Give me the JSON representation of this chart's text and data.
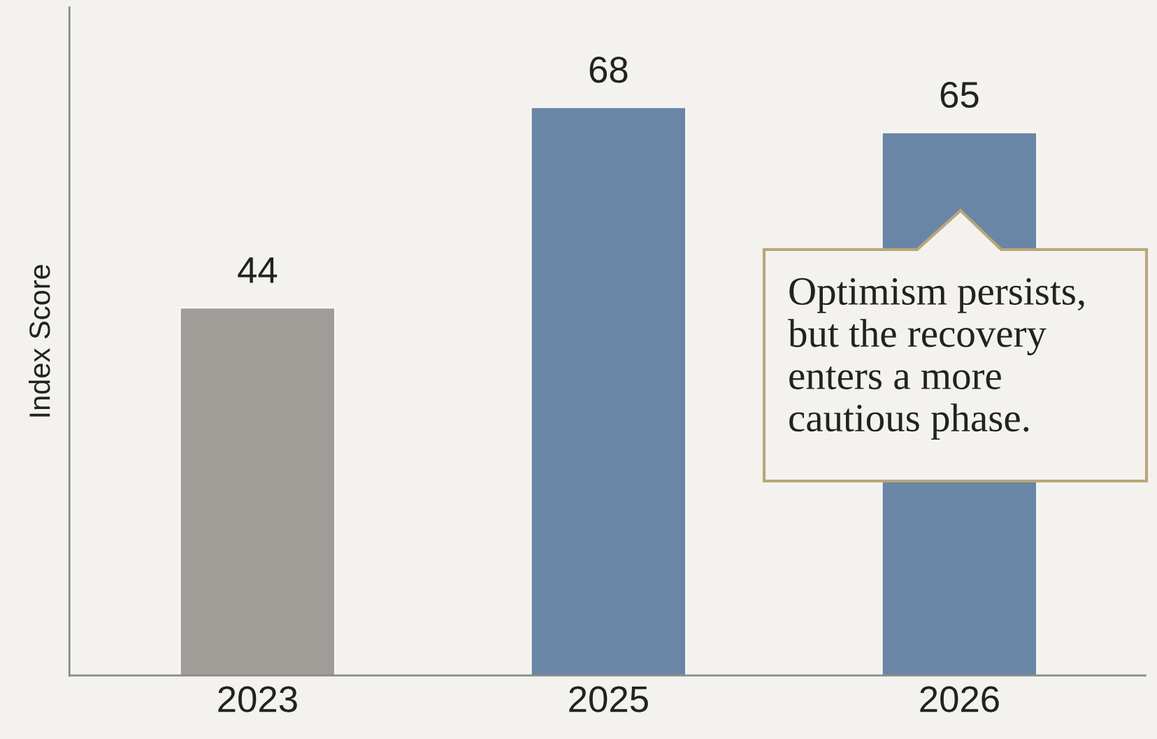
{
  "chart_data": {
    "type": "bar",
    "ylabel": "Index Score",
    "categories": [
      "2023",
      "2025",
      "2026"
    ],
    "values": [
      44,
      68,
      65
    ],
    "colors": [
      "#a09d98",
      "#6a86a6",
      "#6a86a6"
    ],
    "ylim": [
      0,
      80
    ],
    "data_labels": true,
    "grid": false,
    "annotations": [
      "Optimism persists,\nbut the recovery\nenters a more\ncautious phase."
    ]
  }
}
